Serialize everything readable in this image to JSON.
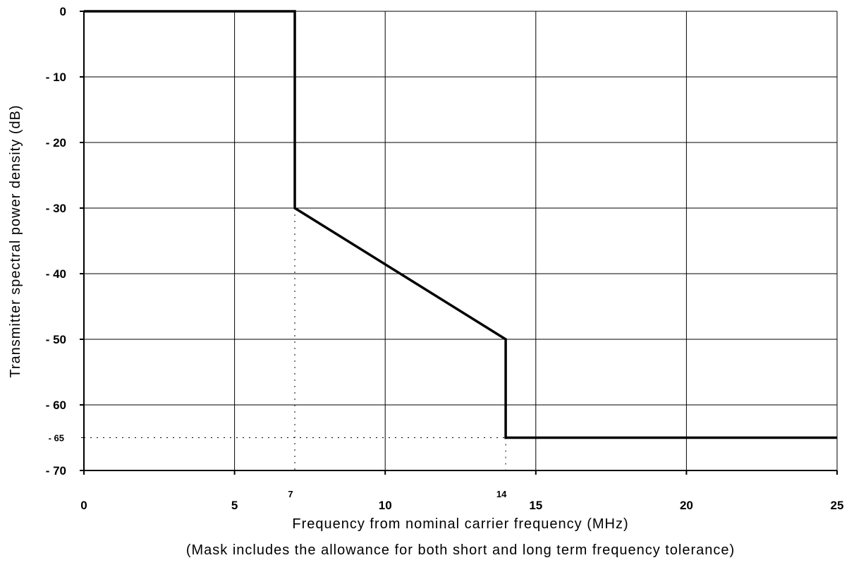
{
  "chart_data": {
    "type": "line",
    "xlabel": "Frequency from nominal carrier frequency (MHz)",
    "xlabel_note": "(Mask includes the allowance for both short and long term frequency tolerance)",
    "ylabel": "Transmitter spectral power density (dB)",
    "xlim": [
      0,
      25
    ],
    "ylim": [
      -70,
      0
    ],
    "grid": true,
    "x_ticks": [
      {
        "value": 0,
        "label": "0"
      },
      {
        "value": 5,
        "label": "5"
      },
      {
        "value": 10,
        "label": "10"
      },
      {
        "value": 15,
        "label": "15"
      },
      {
        "value": 20,
        "label": "20"
      },
      {
        "value": 25,
        "label": "25"
      }
    ],
    "x_ticks_minor": [
      {
        "value": 7,
        "label": "7"
      },
      {
        "value": 14,
        "label": "14"
      }
    ],
    "y_ticks": [
      {
        "value": 0,
        "label": "0"
      },
      {
        "value": -10,
        "label": "- 10"
      },
      {
        "value": -20,
        "label": "- 20"
      },
      {
        "value": -30,
        "label": "- 30"
      },
      {
        "value": -40,
        "label": "- 40"
      },
      {
        "value": -50,
        "label": "- 50"
      },
      {
        "value": -60,
        "label": "- 60"
      },
      {
        "value": -70,
        "label": "- 70"
      }
    ],
    "y_ticks_minor": [
      {
        "value": -65,
        "label": "- 65"
      }
    ],
    "series": [
      {
        "x": [
          0,
          7,
          7,
          14,
          14,
          25
        ],
        "y": [
          0,
          0,
          -30,
          -50,
          -65,
          -65
        ]
      }
    ],
    "reference_lines": [
      {
        "points": [
          [
            7,
            -30
          ],
          [
            7,
            -70
          ]
        ]
      },
      {
        "points": [
          [
            14,
            -65
          ],
          [
            14,
            -70
          ]
        ]
      },
      {
        "points": [
          [
            0,
            -65
          ],
          [
            14,
            -65
          ]
        ]
      }
    ]
  }
}
